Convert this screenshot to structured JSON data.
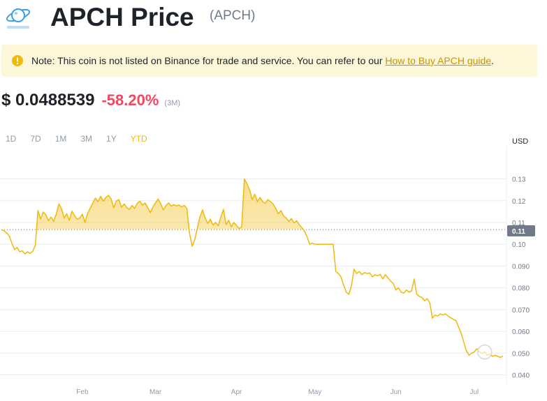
{
  "header": {
    "title": "APCH Price",
    "ticker": "(APCH)",
    "logo_icon": "planet-ring-logo"
  },
  "notice": {
    "icon": "exclamation-circle-icon",
    "text": "Note: This coin is not listed on Binance for trade and service. You can refer to our ",
    "link_text": "How to Buy APCH guide",
    "suffix": "."
  },
  "price": {
    "value": "$ 0.0488539",
    "change": "-58.20%",
    "range": "(3M)"
  },
  "tabs": [
    {
      "label": "1D",
      "active": false
    },
    {
      "label": "7D",
      "active": false
    },
    {
      "label": "1M",
      "active": false
    },
    {
      "label": "3M",
      "active": false
    },
    {
      "label": "1Y",
      "active": false
    },
    {
      "label": "YTD",
      "active": true
    }
  ],
  "colors": {
    "line": "#f0b90b",
    "negative": "#f6465d",
    "grid": "#eaecef",
    "current_tag": "#707a8a"
  },
  "chart_data": {
    "type": "area",
    "unit": "USD",
    "y_ticks": [
      "0.13",
      "0.12",
      "0.11",
      "0.10",
      "0.090",
      "0.080",
      "0.070",
      "0.060",
      "0.050",
      "0.040"
    ],
    "ylim": [
      0.036,
      0.1385
    ],
    "x_ticks": [
      "Feb",
      "Mar",
      "Apr",
      "May",
      "Jun",
      "Jul"
    ],
    "current_label": "0.11",
    "reference_value": 0.1067,
    "grid": true,
    "points": [
      [
        "2023-01-01",
        0.1066
      ],
      [
        "2023-01-02",
        0.1062
      ],
      [
        "2023-01-03",
        0.1052
      ],
      [
        "2023-01-04",
        0.1038
      ],
      [
        "2023-01-05",
        0.1005
      ],
      [
        "2023-01-06",
        0.0975
      ],
      [
        "2023-01-07",
        0.0985
      ],
      [
        "2023-01-08",
        0.0965
      ],
      [
        "2023-01-09",
        0.097
      ],
      [
        "2023-01-10",
        0.0955
      ],
      [
        "2023-01-11",
        0.0965
      ],
      [
        "2023-01-12",
        0.0958
      ],
      [
        "2023-01-13",
        0.0968
      ],
      [
        "2023-01-14",
        0.0995
      ],
      [
        "2023-01-15",
        0.1155
      ],
      [
        "2023-01-16",
        0.1115
      ],
      [
        "2023-01-17",
        0.1148
      ],
      [
        "2023-01-18",
        0.1135
      ],
      [
        "2023-01-19",
        0.1108
      ],
      [
        "2023-01-20",
        0.1125
      ],
      [
        "2023-01-21",
        0.1105
      ],
      [
        "2023-01-22",
        0.1138
      ],
      [
        "2023-01-23",
        0.1185
      ],
      [
        "2023-01-24",
        0.1165
      ],
      [
        "2023-01-25",
        0.112
      ],
      [
        "2023-01-26",
        0.114
      ],
      [
        "2023-01-27",
        0.111
      ],
      [
        "2023-01-28",
        0.1152
      ],
      [
        "2023-01-29",
        0.1132
      ],
      [
        "2023-01-30",
        0.1115
      ],
      [
        "2023-01-31",
        0.112
      ],
      [
        "2023-02-01",
        0.1138
      ],
      [
        "2023-02-02",
        0.11
      ],
      [
        "2023-02-03",
        0.1142
      ],
      [
        "2023-02-04",
        0.1165
      ],
      [
        "2023-02-05",
        0.119
      ],
      [
        "2023-02-06",
        0.1212
      ],
      [
        "2023-02-07",
        0.1195
      ],
      [
        "2023-02-08",
        0.122
      ],
      [
        "2023-02-09",
        0.1198
      ],
      [
        "2023-02-10",
        0.1215
      ],
      [
        "2023-02-11",
        0.1225
      ],
      [
        "2023-02-12",
        0.1208
      ],
      [
        "2023-02-13",
        0.1168
      ],
      [
        "2023-02-14",
        0.1198
      ],
      [
        "2023-02-15",
        0.1205
      ],
      [
        "2023-02-16",
        0.117
      ],
      [
        "2023-02-17",
        0.1185
      ],
      [
        "2023-02-18",
        0.1168
      ],
      [
        "2023-02-19",
        0.116
      ],
      [
        "2023-02-20",
        0.1178
      ],
      [
        "2023-02-21",
        0.1165
      ],
      [
        "2023-02-22",
        0.1188
      ],
      [
        "2023-02-23",
        0.1198
      ],
      [
        "2023-02-24",
        0.118
      ],
      [
        "2023-02-25",
        0.119
      ],
      [
        "2023-02-26",
        0.1168
      ],
      [
        "2023-02-27",
        0.1145
      ],
      [
        "2023-02-28",
        0.1172
      ],
      [
        "2023-03-01",
        0.119
      ],
      [
        "2023-03-02",
        0.1208
      ],
      [
        "2023-03-03",
        0.1185
      ],
      [
        "2023-03-04",
        0.1158
      ],
      [
        "2023-03-05",
        0.1178
      ],
      [
        "2023-03-06",
        0.119
      ],
      [
        "2023-03-07",
        0.1175
      ],
      [
        "2023-03-08",
        0.1182
      ],
      [
        "2023-03-09",
        0.1176
      ],
      [
        "2023-03-10",
        0.118
      ],
      [
        "2023-03-11",
        0.1172
      ],
      [
        "2023-03-12",
        0.1178
      ],
      [
        "2023-03-13",
        0.1165
      ],
      [
        "2023-03-14",
        0.105
      ],
      [
        "2023-03-15",
        0.099
      ],
      [
        "2023-03-16",
        0.102
      ],
      [
        "2023-03-17",
        0.1075
      ],
      [
        "2023-03-18",
        0.1125
      ],
      [
        "2023-03-19",
        0.1158
      ],
      [
        "2023-03-20",
        0.112
      ],
      [
        "2023-03-21",
        0.1095
      ],
      [
        "2023-03-22",
        0.1115
      ],
      [
        "2023-03-23",
        0.1088
      ],
      [
        "2023-03-24",
        0.11
      ],
      [
        "2023-03-25",
        0.1085
      ],
      [
        "2023-03-26",
        0.1125
      ],
      [
        "2023-03-27",
        0.116
      ],
      [
        "2023-03-28",
        0.109
      ],
      [
        "2023-03-29",
        0.111
      ],
      [
        "2023-03-30",
        0.108
      ],
      [
        "2023-03-31",
        0.11
      ],
      [
        "2023-04-01",
        0.1086
      ],
      [
        "2023-04-02",
        0.1072
      ],
      [
        "2023-04-03",
        0.108
      ],
      [
        "2023-04-04",
        0.13
      ],
      [
        "2023-04-05",
        0.1278
      ],
      [
        "2023-04-06",
        0.125
      ],
      [
        "2023-04-07",
        0.1205
      ],
      [
        "2023-04-08",
        0.123
      ],
      [
        "2023-04-09",
        0.1195
      ],
      [
        "2023-04-10",
        0.1215
      ],
      [
        "2023-04-11",
        0.1195
      ],
      [
        "2023-04-12",
        0.1188
      ],
      [
        "2023-04-13",
        0.1205
      ],
      [
        "2023-04-14",
        0.1195
      ],
      [
        "2023-04-15",
        0.1185
      ],
      [
        "2023-04-16",
        0.1165
      ],
      [
        "2023-04-17",
        0.114
      ],
      [
        "2023-04-18",
        0.1155
      ],
      [
        "2023-04-19",
        0.113
      ],
      [
        "2023-04-20",
        0.112
      ],
      [
        "2023-04-21",
        0.1105
      ],
      [
        "2023-04-22",
        0.1118
      ],
      [
        "2023-04-23",
        0.1098
      ],
      [
        "2023-04-24",
        0.1108
      ],
      [
        "2023-04-25",
        0.109
      ],
      [
        "2023-04-26",
        0.1076
      ],
      [
        "2023-04-27",
        0.106
      ],
      [
        "2023-04-28",
        0.1035
      ],
      [
        "2023-04-29",
        0.1
      ],
      [
        "2023-04-30",
        0.1005
      ],
      [
        "2023-05-01",
        0.1
      ],
      [
        "2023-05-02",
        0.1
      ],
      [
        "2023-05-03",
        0.1
      ],
      [
        "2023-05-04",
        0.1
      ],
      [
        "2023-05-05",
        0.1
      ],
      [
        "2023-05-06",
        0.1
      ],
      [
        "2023-05-07",
        0.1
      ],
      [
        "2023-05-08",
        0.1
      ],
      [
        "2023-05-09",
        0.0875
      ],
      [
        "2023-05-10",
        0.0865
      ],
      [
        "2023-05-11",
        0.085
      ],
      [
        "2023-05-12",
        0.0812
      ],
      [
        "2023-05-13",
        0.078
      ],
      [
        "2023-05-14",
        0.077
      ],
      [
        "2023-05-15",
        0.081
      ],
      [
        "2023-05-16",
        0.0885
      ],
      [
        "2023-05-17",
        0.0865
      ],
      [
        "2023-05-18",
        0.0875
      ],
      [
        "2023-05-19",
        0.086
      ],
      [
        "2023-05-20",
        0.087
      ],
      [
        "2023-05-21",
        0.0865
      ],
      [
        "2023-05-22",
        0.0868
      ],
      [
        "2023-05-23",
        0.085
      ],
      [
        "2023-05-24",
        0.086
      ],
      [
        "2023-05-25",
        0.0855
      ],
      [
        "2023-05-26",
        0.0862
      ],
      [
        "2023-05-27",
        0.084
      ],
      [
        "2023-05-28",
        0.086
      ],
      [
        "2023-05-29",
        0.0845
      ],
      [
        "2023-05-30",
        0.083
      ],
      [
        "2023-05-31",
        0.082
      ],
      [
        "2023-06-01",
        0.079
      ],
      [
        "2023-06-02",
        0.08
      ],
      [
        "2023-06-03",
        0.078
      ],
      [
        "2023-06-04",
        0.0775
      ],
      [
        "2023-06-05",
        0.079
      ],
      [
        "2023-06-06",
        0.078
      ],
      [
        "2023-06-07",
        0.0785
      ],
      [
        "2023-06-08",
        0.084
      ],
      [
        "2023-06-09",
        0.077
      ],
      [
        "2023-06-10",
        0.076
      ],
      [
        "2023-06-11",
        0.0755
      ],
      [
        "2023-06-12",
        0.074
      ],
      [
        "2023-06-13",
        0.075
      ],
      [
        "2023-06-14",
        0.073
      ],
      [
        "2023-06-15",
        0.066
      ],
      [
        "2023-06-16",
        0.0675
      ],
      [
        "2023-06-17",
        0.067
      ],
      [
        "2023-06-18",
        0.068
      ],
      [
        "2023-06-19",
        0.0675
      ],
      [
        "2023-06-20",
        0.068
      ],
      [
        "2023-06-21",
        0.067
      ],
      [
        "2023-06-22",
        0.0662
      ],
      [
        "2023-06-23",
        0.0655
      ],
      [
        "2023-06-24",
        0.065
      ],
      [
        "2023-06-25",
        0.062
      ],
      [
        "2023-06-26",
        0.059
      ],
      [
        "2023-06-27",
        0.055
      ],
      [
        "2023-06-28",
        0.051
      ],
      [
        "2023-06-29",
        0.049
      ],
      [
        "2023-06-30",
        0.05
      ],
      [
        "2023-07-01",
        0.0505
      ],
      [
        "2023-07-02",
        0.052
      ],
      [
        "2023-07-03",
        0.0505
      ],
      [
        "2023-07-04",
        0.0498
      ],
      [
        "2023-07-05",
        0.0505
      ],
      [
        "2023-07-06",
        0.049
      ],
      [
        "2023-07-07",
        0.0495
      ],
      [
        "2023-07-08",
        0.0485
      ],
      [
        "2023-07-09",
        0.049
      ],
      [
        "2023-07-10",
        0.0485
      ],
      [
        "2023-07-11",
        0.048
      ],
      [
        "2023-07-12",
        0.0487
      ]
    ]
  }
}
